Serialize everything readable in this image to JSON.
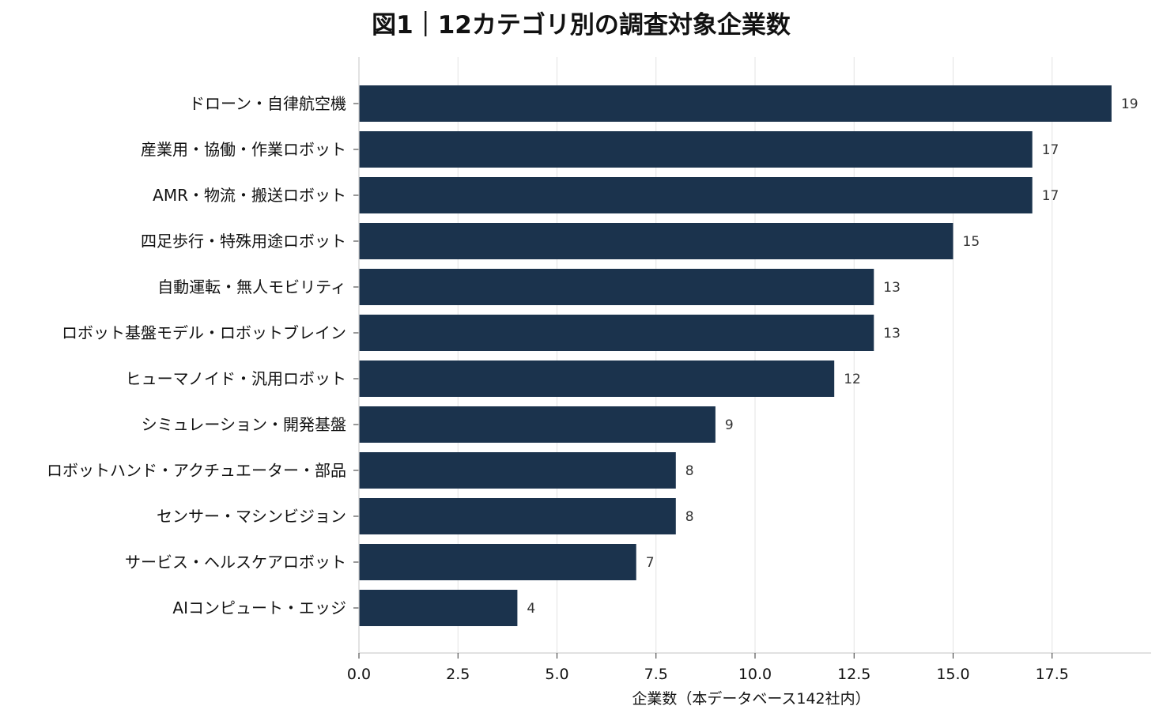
{
  "chart_data": {
    "type": "bar",
    "orientation": "horizontal",
    "title": "図1｜12カテゴリ別の調査対象企業数",
    "xlabel": "企業数（本データベース142社内）",
    "ylabel": "",
    "categories": [
      "ドローン・自律航空機",
      "産業用・協働・作業ロボット",
      "AMR・物流・搬送ロボット",
      "四足歩行・特殊用途ロボット",
      "自動運転・無人モビリティ",
      "ロボット基盤モデル・ロボットブレイン",
      "ヒューマノイド・汎用ロボット",
      "シミュレーション・開発基盤",
      "ロボットハンド・アクチュエーター・部品",
      "センサー・マシンビジョン",
      "サービス・ヘルスケアロボット",
      "AIコンピュート・エッジ"
    ],
    "values": [
      19,
      17,
      17,
      15,
      13,
      13,
      12,
      9,
      8,
      8,
      7,
      4
    ],
    "xlim": [
      0,
      20
    ],
    "xticks": [
      "0.0",
      "2.5",
      "5.0",
      "7.5",
      "10.0",
      "12.5",
      "15.0",
      "17.5"
    ],
    "grid": true,
    "bar_color": "#1b334d"
  }
}
